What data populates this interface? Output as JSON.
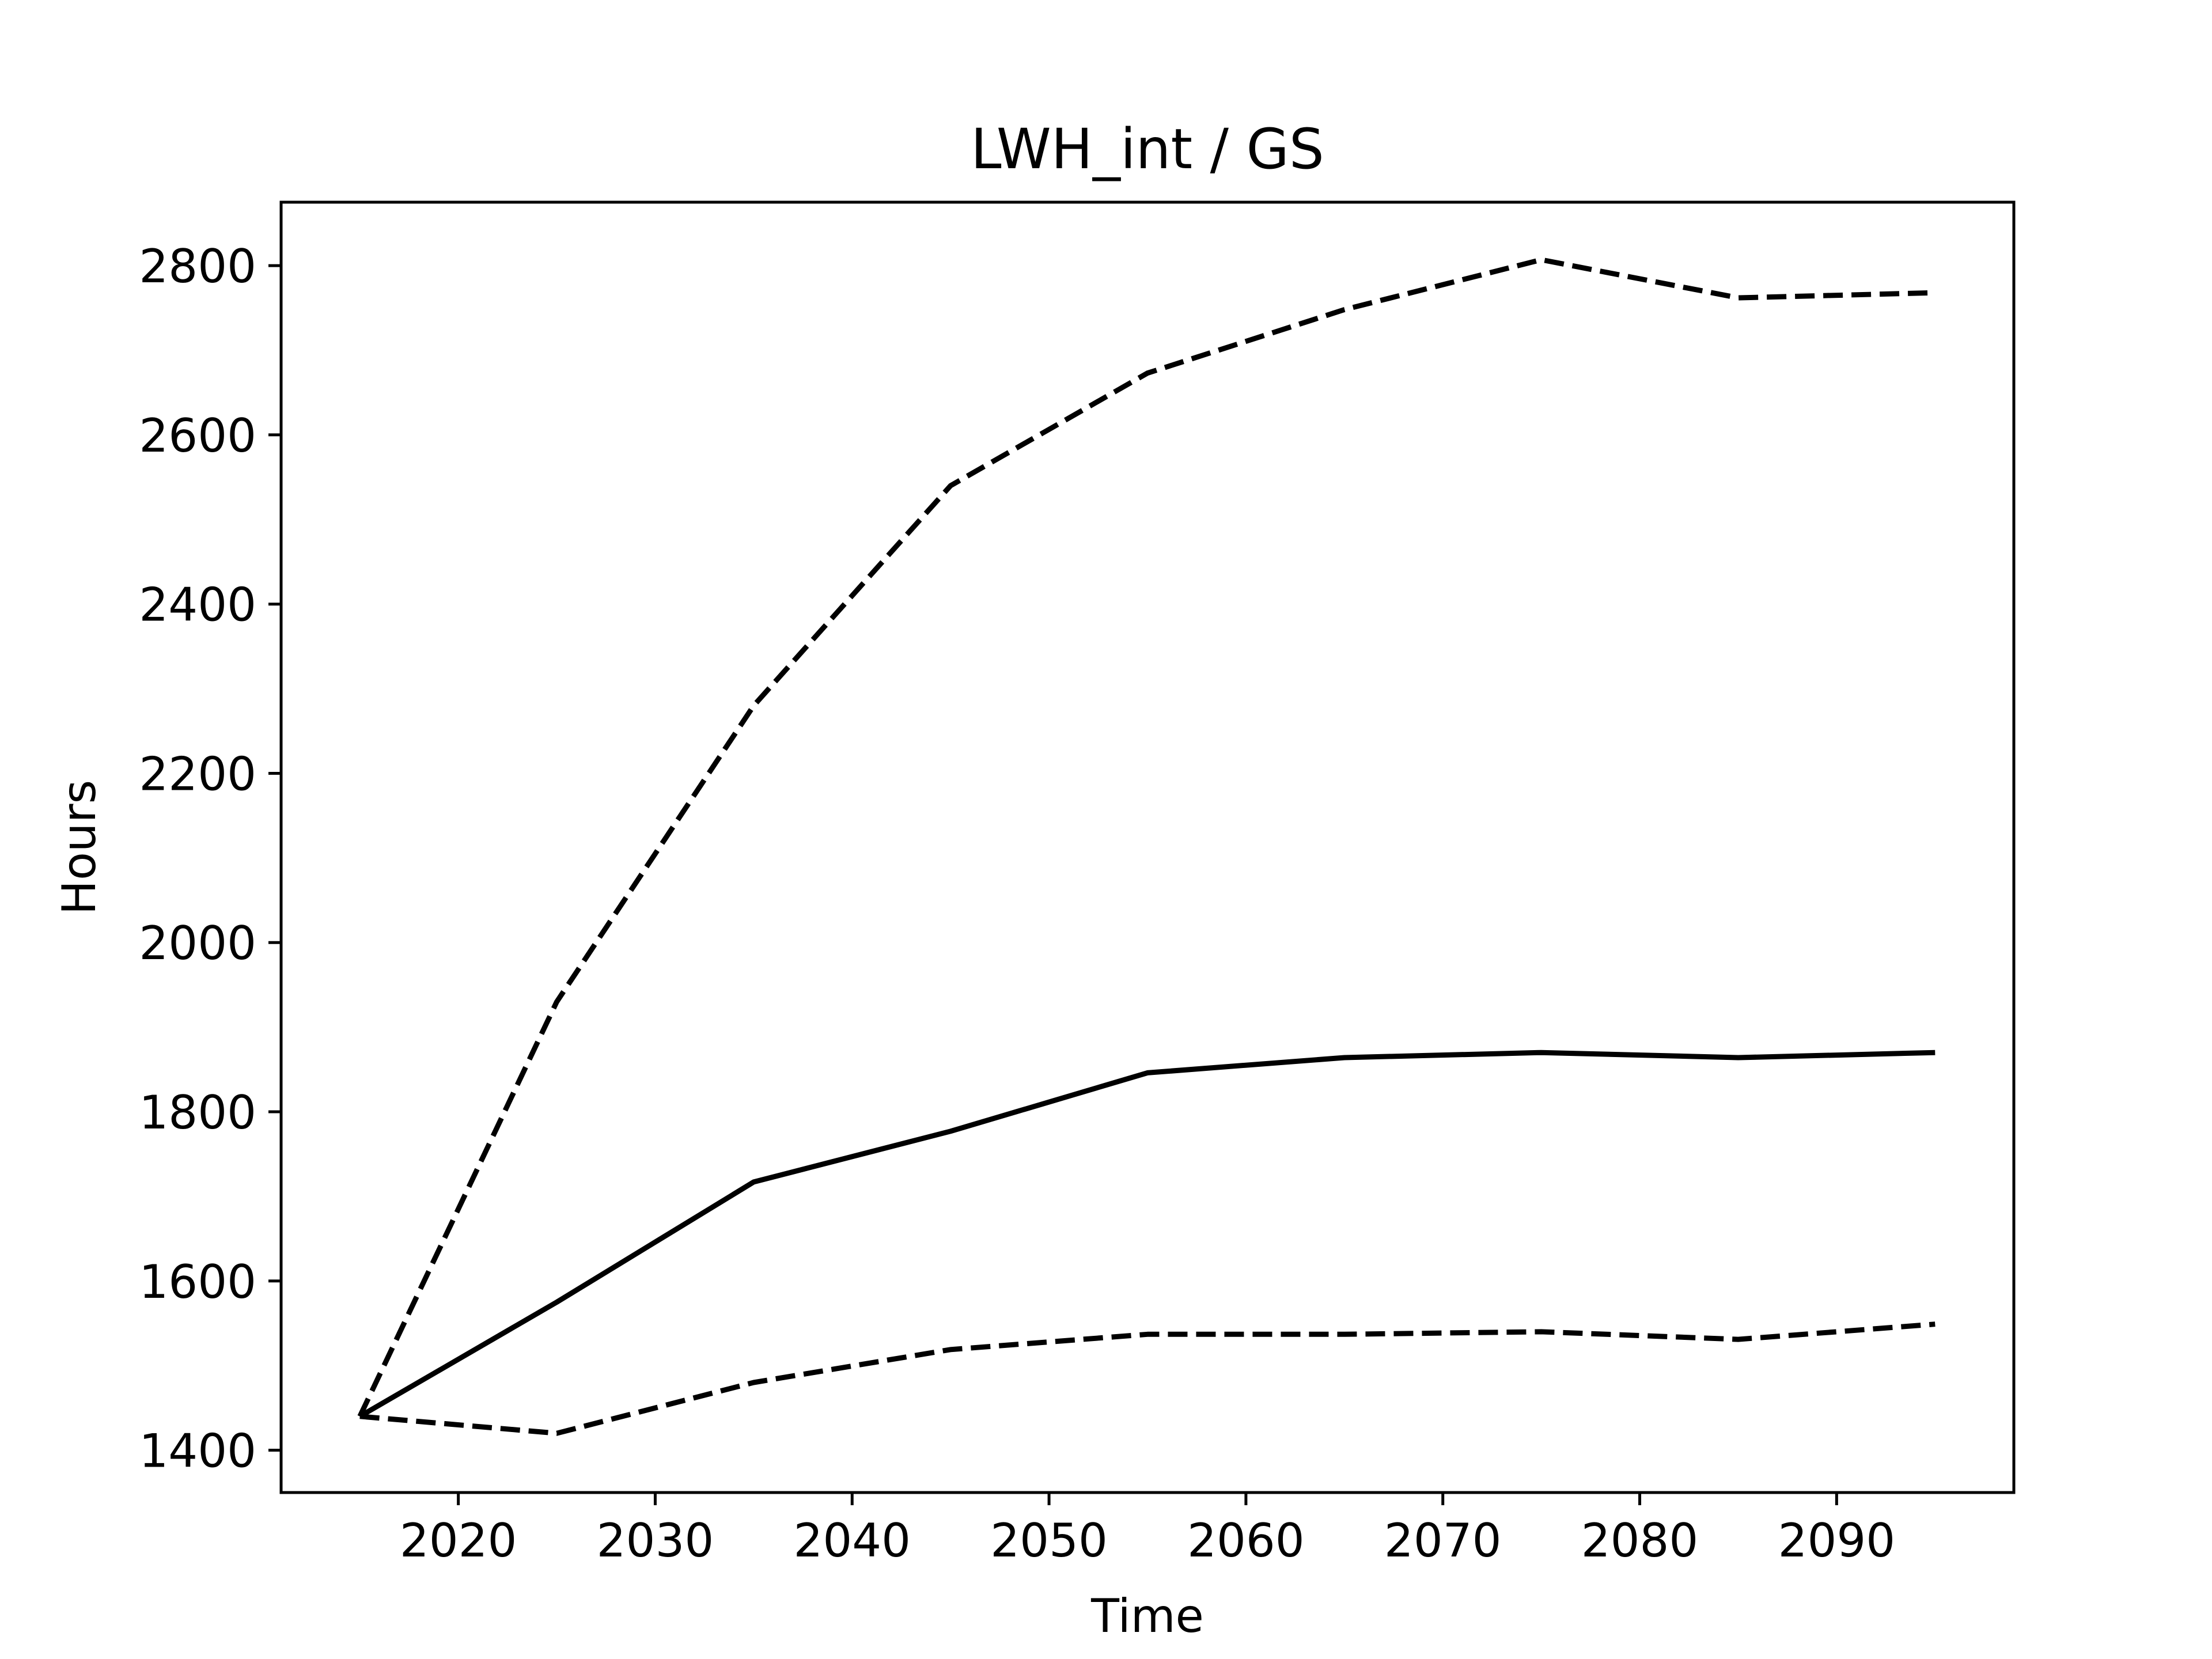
{
  "chart_data": {
    "type": "line",
    "title": "LWH_int / GS",
    "xlabel": "Time",
    "ylabel": "Hours",
    "xlim": [
      2011,
      2099
    ],
    "ylim": [
      1350,
      2875
    ],
    "xticks": [
      2020,
      2030,
      2040,
      2050,
      2060,
      2070,
      2080,
      2090
    ],
    "yticks": [
      1400,
      1600,
      1800,
      2000,
      2200,
      2400,
      2600,
      2800
    ],
    "x": [
      2015,
      2025,
      2035,
      2045,
      2055,
      2065,
      2075,
      2085,
      2095
    ],
    "grid": false,
    "series": [
      {
        "style": "solid",
        "color": "#000000",
        "values": [
          1440,
          1575,
          1717,
          1777,
          1846,
          1864,
          1870,
          1864,
          1870
        ]
      },
      {
        "style": "dashed",
        "color": "#000000",
        "values": [
          1440,
          1930,
          2280,
          2540,
          2673,
          2748,
          2807,
          2762,
          2768
        ]
      },
      {
        "style": "dashed",
        "color": "#000000",
        "values": [
          1440,
          1420,
          1480,
          1519,
          1537,
          1537,
          1540,
          1531,
          1549
        ]
      }
    ]
  }
}
